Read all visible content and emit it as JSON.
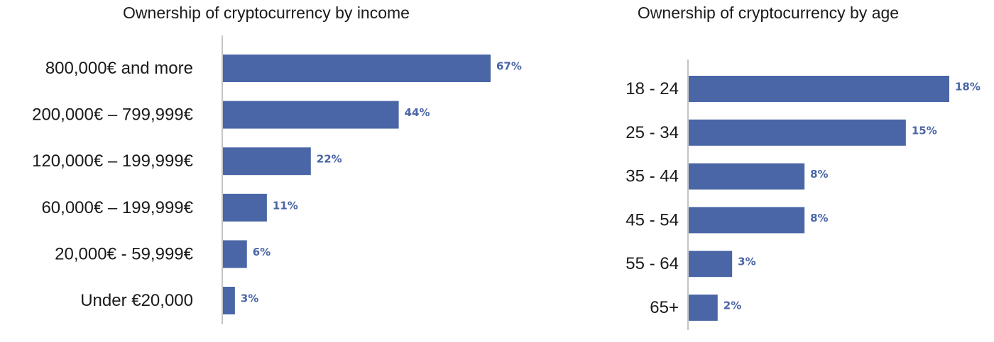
{
  "chart_data": [
    {
      "type": "bar",
      "orientation": "horizontal",
      "title": "Ownership of cryptocurrency by income",
      "categories": [
        "800,000€ and more",
        "200,000€ – 799,999€",
        "120,000€ – 199,999€",
        "60,000€ – 199,999€",
        "20,000€ - 59,999€",
        "Under €20,000"
      ],
      "values": [
        67,
        44,
        22,
        11,
        6,
        3
      ],
      "value_labels": [
        "67%",
        "44%",
        "22%",
        "11%",
        "6%",
        "3%"
      ],
      "xlim": [
        0,
        67
      ],
      "color": "#4a66a6"
    },
    {
      "type": "bar",
      "orientation": "horizontal",
      "title": "Ownership of cryptocurrency by age",
      "categories": [
        "18 - 24",
        "25 - 34",
        "35 - 44",
        "45 - 54",
        "55 - 64",
        "65+"
      ],
      "values": [
        18,
        15,
        8,
        8,
        3,
        2
      ],
      "value_labels": [
        "18%",
        "15%",
        "8%",
        "8%",
        "3%",
        "2%"
      ],
      "xlim": [
        0,
        18
      ],
      "color": "#4a66a6"
    }
  ]
}
